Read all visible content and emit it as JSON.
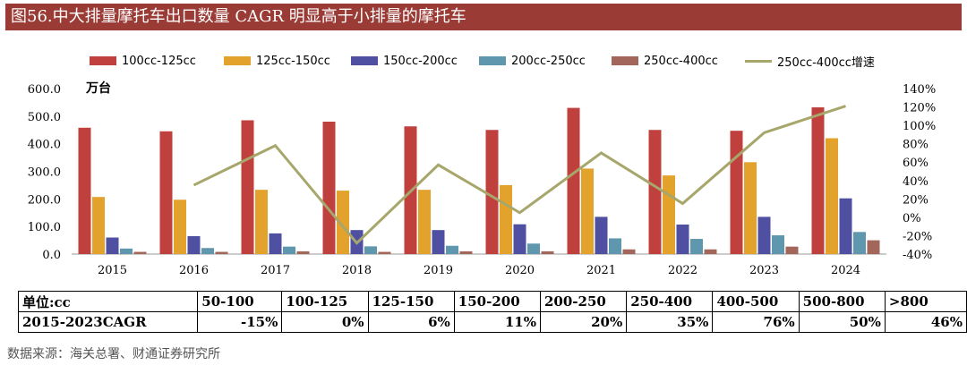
{
  "title": "图56.中大排量摩托车出口数量 CAGR 明显高于小排量的摩托车",
  "source": "数据来源：海关总署、财通证券研究所",
  "chart_data": {
    "type": "bar",
    "unit_label": "万台",
    "categories": [
      "2015",
      "2016",
      "2017",
      "2018",
      "2019",
      "2020",
      "2021",
      "2022",
      "2023",
      "2024"
    ],
    "series": [
      {
        "name": "100cc-125cc",
        "color": "#c0403d",
        "values": [
          458,
          445,
          485,
          480,
          463,
          450,
          530,
          450,
          447,
          532
        ]
      },
      {
        "name": "125cc-150cc",
        "color": "#e3a22b",
        "values": [
          207,
          197,
          233,
          230,
          233,
          250,
          310,
          285,
          333,
          420
        ]
      },
      {
        "name": "150cc-200cc",
        "color": "#4f50a2",
        "values": [
          60,
          65,
          75,
          87,
          87,
          108,
          135,
          107,
          135,
          202
        ]
      },
      {
        "name": "200cc-250cc",
        "color": "#5f97ae",
        "values": [
          20,
          22,
          27,
          28,
          30,
          38,
          57,
          55,
          68,
          80
        ]
      },
      {
        "name": "250cc-400cc",
        "color": "#a3665a",
        "values": [
          8,
          8,
          10,
          8,
          10,
          10,
          17,
          17,
          27,
          50
        ]
      }
    ],
    "line_series": {
      "name": "250cc-400cc增速",
      "color": "#a7a66b",
      "categories": [
        "2016",
        "2017",
        "2018",
        "2019",
        "2020",
        "2021",
        "2022",
        "2023",
        "2024"
      ],
      "values": [
        35,
        78,
        -28,
        57,
        5,
        70,
        15,
        92,
        121
      ]
    },
    "y_left": {
      "min": 0,
      "max": 600,
      "ticks": [
        "0.0",
        "100.0",
        "200.0",
        "300.0",
        "400.0",
        "500.0",
        "600.0"
      ]
    },
    "y_right": {
      "min": -40,
      "max": 140,
      "ticks": [
        "-40%",
        "-20%",
        "0%",
        "20%",
        "40%",
        "60%",
        "80%",
        "100%",
        "120%",
        "140%"
      ]
    },
    "legend_position": "top"
  },
  "table": {
    "header": [
      "单位:cc",
      "50-100",
      "100-125",
      "125-150",
      "150-200",
      "200-250",
      "250-400",
      "400-500",
      "500-800",
      ">800"
    ],
    "row": [
      "2015-2023CAGR",
      "-15%",
      "0%",
      "6%",
      "11%",
      "20%",
      "35%",
      "76%",
      "50%",
      "46%"
    ]
  }
}
